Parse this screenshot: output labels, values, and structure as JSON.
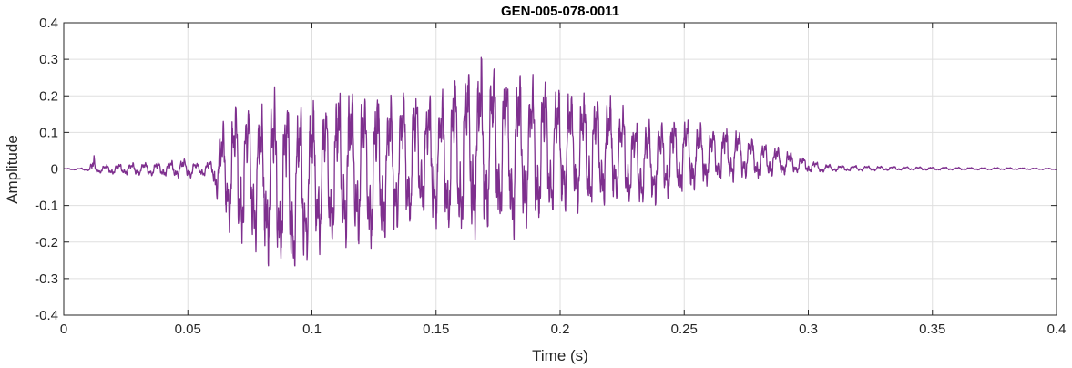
{
  "chart_data": {
    "type": "line",
    "title": "GEN-005-078-0011",
    "xlabel": "Time (s)",
    "ylabel": "Amplitude",
    "xlim": [
      0,
      0.4
    ],
    "ylim": [
      -0.4,
      0.4
    ],
    "xticks": [
      0,
      0.05,
      0.1,
      0.15,
      0.2,
      0.25,
      0.3,
      0.35,
      0.4
    ],
    "xtick_labels": [
      "0",
      "0.05",
      "0.1",
      "0.15",
      "0.2",
      "0.25",
      "0.3",
      "0.35",
      "0.4"
    ],
    "yticks": [
      -0.4,
      -0.3,
      -0.2,
      -0.1,
      0,
      0.1,
      0.2,
      0.3,
      0.4
    ],
    "ytick_labels": [
      "-0.4",
      "-0.3",
      "-0.2",
      "-0.1",
      "0",
      "0.1",
      "0.2",
      "0.3",
      "0.4"
    ],
    "grid": true,
    "series_color": "#7E2F8E",
    "series": [
      {
        "x": [
          0,
          0.005,
          0.01,
          0.012,
          0.013,
          0.015,
          0.02,
          0.03,
          0.04,
          0.05,
          0.055,
          0.06,
          0.062,
          0.065,
          0.068,
          0.07,
          0.075,
          0.08,
          0.085,
          0.09,
          0.095,
          0.1,
          0.105,
          0.11,
          0.115,
          0.12,
          0.125,
          0.13,
          0.135,
          0.14,
          0.145,
          0.15,
          0.155,
          0.16,
          0.165,
          0.17,
          0.175,
          0.18,
          0.185,
          0.19,
          0.195,
          0.2,
          0.205,
          0.21,
          0.215,
          0.22,
          0.225,
          0.23,
          0.235,
          0.24,
          0.245,
          0.25,
          0.255,
          0.26,
          0.265,
          0.27,
          0.275,
          0.28,
          0.285,
          0.29,
          0.295,
          0.3,
          0.305,
          0.31,
          0.32,
          0.33,
          0.34,
          0.35,
          0.36,
          0.37,
          0.38,
          0.39,
          0.4
        ],
        "envelope_upper": [
          0.002,
          0.002,
          0.004,
          0.048,
          0.01,
          0.01,
          0.015,
          0.018,
          0.022,
          0.03,
          0.015,
          0.03,
          0.09,
          0.15,
          0.2,
          0.22,
          0.2,
          0.18,
          0.23,
          0.22,
          0.19,
          0.2,
          0.21,
          0.24,
          0.24,
          0.24,
          0.24,
          0.22,
          0.24,
          0.24,
          0.22,
          0.21,
          0.25,
          0.3,
          0.31,
          0.32,
          0.31,
          0.29,
          0.28,
          0.27,
          0.26,
          0.24,
          0.24,
          0.22,
          0.21,
          0.21,
          0.18,
          0.15,
          0.14,
          0.14,
          0.15,
          0.15,
          0.13,
          0.12,
          0.12,
          0.12,
          0.1,
          0.08,
          0.07,
          0.06,
          0.04,
          0.03,
          0.015,
          0.012,
          0.01,
          0.008,
          0.007,
          0.006,
          0.005,
          0.004,
          0.004,
          0.003,
          0.002
        ],
        "envelope_lower": [
          -0.002,
          -0.003,
          -0.005,
          -0.06,
          -0.012,
          -0.012,
          -0.016,
          -0.018,
          -0.022,
          -0.028,
          -0.018,
          -0.03,
          -0.1,
          -0.15,
          -0.22,
          -0.23,
          -0.22,
          -0.25,
          -0.28,
          -0.31,
          -0.3,
          -0.26,
          -0.23,
          -0.24,
          -0.22,
          -0.24,
          -0.25,
          -0.22,
          -0.2,
          -0.18,
          -0.15,
          -0.17,
          -0.2,
          -0.21,
          -0.2,
          -0.2,
          -0.19,
          -0.21,
          -0.19,
          -0.18,
          -0.16,
          -0.14,
          -0.14,
          -0.13,
          -0.12,
          -0.12,
          -0.1,
          -0.12,
          -0.11,
          -0.1,
          -0.09,
          -0.08,
          -0.06,
          -0.05,
          -0.045,
          -0.04,
          -0.035,
          -0.03,
          -0.025,
          -0.02,
          -0.015,
          -0.012,
          -0.01,
          -0.008,
          -0.006,
          -0.005,
          -0.004,
          -0.004,
          -0.003,
          -0.003,
          -0.002,
          -0.002,
          -0.002
        ]
      }
    ]
  }
}
